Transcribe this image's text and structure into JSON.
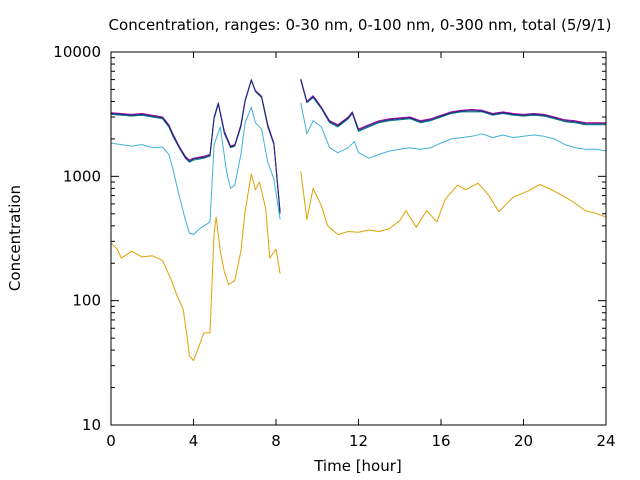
{
  "chart_data": {
    "type": "line",
    "title": "Concentration, ranges: 0-30 nm, 0-100 nm, 0-300 nm, total (5/9/1)",
    "xlabel": "Time [hour]",
    "ylabel": "Concentration",
    "xlim": [
      0,
      24
    ],
    "ylim": [
      10,
      10000
    ],
    "yscale": "log",
    "grid": false,
    "legend": "none",
    "xticks": [
      "0",
      "4",
      "8",
      "12",
      "16",
      "20",
      "24"
    ],
    "yticks": [
      "10",
      "100",
      "1000",
      "10000"
    ],
    "series": [
      {
        "color": "#e0a000",
        "points": [
          [
            0,
            290
          ],
          [
            0.3,
            260
          ],
          [
            0.5,
            220
          ],
          [
            1,
            250
          ],
          [
            1.5,
            225
          ],
          [
            2,
            230
          ],
          [
            2.5,
            210
          ],
          [
            2.9,
            150
          ],
          [
            3.2,
            110
          ],
          [
            3.5,
            85
          ],
          [
            3.7,
            50
          ],
          [
            3.8,
            36
          ],
          [
            4.0,
            33
          ],
          [
            4.2,
            40
          ],
          [
            4.5,
            55
          ],
          [
            4.8,
            55
          ],
          [
            5.0,
            350
          ],
          [
            5.1,
            470
          ],
          [
            5.3,
            250
          ],
          [
            5.5,
            170
          ],
          [
            5.7,
            135
          ],
          [
            6.0,
            145
          ],
          [
            6.3,
            250
          ],
          [
            6.5,
            520
          ],
          [
            6.8,
            1050
          ],
          [
            7.0,
            780
          ],
          [
            7.2,
            900
          ],
          [
            7.5,
            550
          ],
          [
            7.7,
            220
          ],
          [
            8.0,
            260
          ],
          [
            8.2,
            165
          ],
          null,
          [
            9.2,
            1100
          ],
          [
            9.5,
            450
          ],
          [
            9.8,
            800
          ],
          [
            10.2,
            580
          ],
          [
            10.5,
            400
          ],
          [
            11,
            340
          ],
          [
            11.5,
            360
          ],
          [
            12,
            355
          ],
          [
            12.5,
            370
          ],
          [
            13,
            360
          ],
          [
            13.5,
            380
          ],
          [
            14,
            440
          ],
          [
            14.3,
            530
          ],
          [
            14.8,
            390
          ],
          [
            15.3,
            530
          ],
          [
            15.8,
            430
          ],
          [
            16.2,
            650
          ],
          [
            16.8,
            850
          ],
          [
            17.2,
            780
          ],
          [
            17.8,
            880
          ],
          [
            18.3,
            710
          ],
          [
            18.8,
            520
          ],
          [
            19.5,
            680
          ],
          [
            20.2,
            760
          ],
          [
            20.8,
            860
          ],
          [
            21.5,
            760
          ],
          [
            22.3,
            640
          ],
          [
            23,
            530
          ],
          [
            23.5,
            505
          ],
          [
            24,
            470
          ]
        ]
      },
      {
        "color": "#40b0d8",
        "points": [
          [
            0,
            1850
          ],
          [
            0.5,
            1800
          ],
          [
            1,
            1750
          ],
          [
            1.5,
            1800
          ],
          [
            2,
            1700
          ],
          [
            2.5,
            1720
          ],
          [
            2.8,
            1500
          ],
          [
            3.0,
            1150
          ],
          [
            3.3,
            700
          ],
          [
            3.6,
            450
          ],
          [
            3.8,
            350
          ],
          [
            4.0,
            340
          ],
          [
            4.3,
            380
          ],
          [
            4.8,
            430
          ],
          [
            5.0,
            1800
          ],
          [
            5.3,
            2500
          ],
          [
            5.6,
            1100
          ],
          [
            5.8,
            800
          ],
          [
            6.0,
            850
          ],
          [
            6.3,
            1500
          ],
          [
            6.5,
            2700
          ],
          [
            6.8,
            3600
          ],
          [
            7.0,
            2700
          ],
          [
            7.3,
            2400
          ],
          [
            7.6,
            1300
          ],
          [
            7.9,
            950
          ],
          [
            8.2,
            450
          ],
          null,
          [
            9.2,
            3900
          ],
          [
            9.5,
            2200
          ],
          [
            9.8,
            2800
          ],
          [
            10.2,
            2500
          ],
          [
            10.6,
            1700
          ],
          [
            11.0,
            1550
          ],
          [
            11.5,
            1700
          ],
          [
            11.8,
            1900
          ],
          [
            12.0,
            1550
          ],
          [
            12.5,
            1400
          ],
          [
            13,
            1500
          ],
          [
            13.5,
            1600
          ],
          [
            14,
            1650
          ],
          [
            14.5,
            1700
          ],
          [
            15,
            1650
          ],
          [
            15.5,
            1700
          ],
          [
            16,
            1850
          ],
          [
            16.5,
            2000
          ],
          [
            17,
            2050
          ],
          [
            17.5,
            2100
          ],
          [
            18,
            2200
          ],
          [
            18.5,
            2050
          ],
          [
            19,
            2150
          ],
          [
            19.5,
            2050
          ],
          [
            20,
            2100
          ],
          [
            20.5,
            2150
          ],
          [
            21,
            2100
          ],
          [
            21.5,
            2000
          ],
          [
            22,
            1800
          ],
          [
            22.5,
            1700
          ],
          [
            23,
            1650
          ],
          [
            23.5,
            1650
          ],
          [
            24,
            1600
          ]
        ]
      },
      {
        "color": "#008080",
        "points": [
          [
            0,
            3150
          ],
          [
            0.5,
            3100
          ],
          [
            1,
            3050
          ],
          [
            1.5,
            3100
          ],
          [
            2,
            3000
          ],
          [
            2.5,
            2900
          ],
          [
            2.8,
            2500
          ],
          [
            3.0,
            2100
          ],
          [
            3.3,
            1700
          ],
          [
            3.6,
            1400
          ],
          [
            3.8,
            1300
          ],
          [
            4.0,
            1350
          ],
          [
            4.5,
            1400
          ],
          [
            4.8,
            1450
          ],
          [
            5.0,
            2900
          ],
          [
            5.2,
            3800
          ],
          [
            5.5,
            2200
          ],
          [
            5.8,
            1700
          ],
          [
            6.0,
            1750
          ],
          [
            6.3,
            2500
          ],
          [
            6.5,
            4000
          ],
          [
            6.8,
            5900
          ],
          [
            7.0,
            4800
          ],
          [
            7.3,
            4300
          ],
          [
            7.6,
            2500
          ],
          [
            7.9,
            1800
          ],
          [
            8.2,
            500
          ],
          null,
          [
            9.2,
            5900
          ],
          [
            9.5,
            3900
          ],
          [
            9.8,
            4300
          ],
          [
            10.2,
            3500
          ],
          [
            10.6,
            2700
          ],
          [
            11.0,
            2500
          ],
          [
            11.5,
            2900
          ],
          [
            11.7,
            3200
          ],
          [
            12.0,
            2300
          ],
          [
            12.5,
            2500
          ],
          [
            13,
            2700
          ],
          [
            13.5,
            2800
          ],
          [
            14,
            2850
          ],
          [
            14.5,
            2900
          ],
          [
            15,
            2700
          ],
          [
            15.5,
            2800
          ],
          [
            16,
            3000
          ],
          [
            16.5,
            3200
          ],
          [
            17,
            3300
          ],
          [
            17.5,
            3300
          ],
          [
            18,
            3300
          ],
          [
            18.5,
            3100
          ],
          [
            19,
            3200
          ],
          [
            19.5,
            3100
          ],
          [
            20,
            3050
          ],
          [
            20.5,
            3100
          ],
          [
            21,
            3050
          ],
          [
            21.5,
            2900
          ],
          [
            22,
            2750
          ],
          [
            22.5,
            2700
          ],
          [
            23,
            2600
          ],
          [
            23.5,
            2600
          ],
          [
            24,
            2600
          ]
        ]
      },
      {
        "color": "#a000a0",
        "points": [
          [
            0,
            3250
          ],
          [
            0.5,
            3200
          ],
          [
            1,
            3150
          ],
          [
            1.5,
            3200
          ],
          [
            2,
            3100
          ],
          [
            2.5,
            3000
          ],
          [
            2.8,
            2600
          ],
          [
            3.0,
            2200
          ],
          [
            3.3,
            1750
          ],
          [
            3.6,
            1450
          ],
          [
            3.8,
            1350
          ],
          [
            4.0,
            1400
          ],
          [
            4.5,
            1450
          ],
          [
            4.8,
            1500
          ],
          [
            5.0,
            3000
          ],
          [
            5.2,
            3900
          ],
          [
            5.5,
            2300
          ],
          [
            5.8,
            1750
          ],
          [
            6.0,
            1800
          ],
          [
            6.3,
            2600
          ],
          [
            6.5,
            4100
          ],
          [
            6.8,
            6000
          ],
          [
            7.0,
            4900
          ],
          [
            7.3,
            4400
          ],
          [
            7.6,
            2600
          ],
          [
            7.9,
            1850
          ],
          [
            8.2,
            520
          ],
          null,
          [
            9.2,
            6100
          ],
          [
            9.5,
            4000
          ],
          [
            9.8,
            4450
          ],
          [
            10.2,
            3600
          ],
          [
            10.6,
            2800
          ],
          [
            11.0,
            2600
          ],
          [
            11.5,
            3000
          ],
          [
            11.7,
            3300
          ],
          [
            12.0,
            2400
          ],
          [
            12.5,
            2600
          ],
          [
            13,
            2800
          ],
          [
            13.5,
            2900
          ],
          [
            14,
            2950
          ],
          [
            14.5,
            3000
          ],
          [
            15,
            2800
          ],
          [
            15.5,
            2900
          ],
          [
            16,
            3100
          ],
          [
            16.5,
            3300
          ],
          [
            17,
            3400
          ],
          [
            17.5,
            3450
          ],
          [
            18,
            3400
          ],
          [
            18.5,
            3200
          ],
          [
            19,
            3300
          ],
          [
            19.5,
            3200
          ],
          [
            20,
            3150
          ],
          [
            20.5,
            3200
          ],
          [
            21,
            3150
          ],
          [
            21.5,
            3000
          ],
          [
            22,
            2850
          ],
          [
            22.5,
            2800
          ],
          [
            23,
            2700
          ],
          [
            23.5,
            2700
          ],
          [
            24,
            2700
          ]
        ]
      },
      {
        "color": "#1a2a80",
        "points": [
          [
            0,
            3200
          ],
          [
            0.5,
            3150
          ],
          [
            1,
            3100
          ],
          [
            1.5,
            3150
          ],
          [
            2,
            3050
          ],
          [
            2.5,
            2950
          ],
          [
            2.8,
            2550
          ],
          [
            3.0,
            2150
          ],
          [
            3.3,
            1720
          ],
          [
            3.6,
            1420
          ],
          [
            3.8,
            1320
          ],
          [
            4.0,
            1380
          ],
          [
            4.5,
            1420
          ],
          [
            4.8,
            1480
          ],
          [
            5.0,
            2950
          ],
          [
            5.2,
            3850
          ],
          [
            5.5,
            2250
          ],
          [
            5.8,
            1720
          ],
          [
            6.0,
            1770
          ],
          [
            6.3,
            2550
          ],
          [
            6.5,
            4050
          ],
          [
            6.8,
            5950
          ],
          [
            7.0,
            4850
          ],
          [
            7.3,
            4350
          ],
          [
            7.6,
            2550
          ],
          [
            7.9,
            1820
          ],
          [
            8.2,
            510
          ],
          null,
          [
            9.2,
            6000
          ],
          [
            9.5,
            3950
          ],
          [
            9.8,
            4380
          ],
          [
            10.2,
            3550
          ],
          [
            10.6,
            2750
          ],
          [
            11.0,
            2550
          ],
          [
            11.5,
            2950
          ],
          [
            11.7,
            3250
          ],
          [
            12.0,
            2350
          ],
          [
            12.5,
            2550
          ],
          [
            13,
            2750
          ],
          [
            13.5,
            2850
          ],
          [
            14,
            2900
          ],
          [
            14.5,
            2950
          ],
          [
            15,
            2750
          ],
          [
            15.5,
            2850
          ],
          [
            16,
            3050
          ],
          [
            16.5,
            3250
          ],
          [
            17,
            3350
          ],
          [
            17.5,
            3380
          ],
          [
            18,
            3350
          ],
          [
            18.5,
            3150
          ],
          [
            19,
            3250
          ],
          [
            19.5,
            3150
          ],
          [
            20,
            3100
          ],
          [
            20.5,
            3150
          ],
          [
            21,
            3100
          ],
          [
            21.5,
            2950
          ],
          [
            22,
            2800
          ],
          [
            22.5,
            2750
          ],
          [
            23,
            2650
          ],
          [
            23.5,
            2650
          ],
          [
            24,
            2650
          ]
        ]
      }
    ]
  }
}
